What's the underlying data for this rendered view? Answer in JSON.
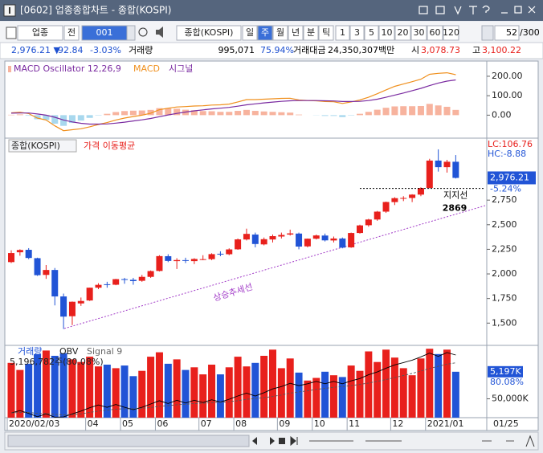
{
  "window": {
    "title": "[0602] 업종종합차트 - 종합(KOSPI)"
  },
  "toolbar": {
    "market": "업종",
    "prefix": "전",
    "code": "001",
    "name": "종합(KOSPI)",
    "periods": [
      "일",
      "주",
      "월",
      "년",
      "분",
      "틱"
    ],
    "intervals": [
      "1",
      "3",
      "5",
      "10",
      "20",
      "30",
      "60",
      "120"
    ],
    "count": "52",
    "total": "/300"
  },
  "quote": {
    "price": "2,976.21 ▼",
    "change": "92.84",
    "rate": "-3.03%",
    "volume_label": "거래량",
    "volume": "995,071",
    "volume_rate": "75.94%",
    "amount_label": "거래대금",
    "amount": "24,350,307백만",
    "open_label": "시",
    "open": "3,078.73",
    "high_label": "고",
    "high": "3,100.22"
  },
  "chart_data": [
    {
      "type": "macd",
      "oscillator": {
        "name": "MACD Oscillator 12,26,9",
        "pos_color": "#f7b39e",
        "neg_color": "#a8d8ee",
        "values": [
          2,
          4,
          -3,
          -21,
          -25,
          -44,
          -55,
          -40,
          -28,
          -14,
          -2,
          7,
          16,
          21,
          23,
          24,
          27,
          36,
          35,
          33,
          28,
          25,
          21,
          20,
          17,
          17,
          22,
          27,
          22,
          19,
          17,
          15,
          13,
          3,
          0,
          -1,
          -4,
          -4,
          -10,
          -2,
          7,
          17,
          28,
          38,
          45,
          46,
          46,
          47,
          58,
          50,
          43,
          27
        ]
      },
      "series": [
        {
          "name": "MACD",
          "color": "#f0901e",
          "values": [
            12,
            15,
            8,
            -15,
            -25,
            -55,
            -80,
            -75,
            -70,
            -60,
            -48,
            -38,
            -25,
            -15,
            -7,
            0,
            10,
            28,
            36,
            42,
            44,
            47,
            48,
            52,
            53,
            57,
            68,
            80,
            80,
            82,
            84,
            86,
            87,
            78,
            75,
            74,
            70,
            69,
            60,
            68,
            78,
            92,
            110,
            130,
            148,
            160,
            172,
            185,
            210,
            215,
            218,
            208
          ]
        },
        {
          "name": "시그널",
          "color": "#7a2aa0",
          "values": [
            10,
            11,
            11,
            6,
            0,
            -11,
            -25,
            -35,
            -42,
            -46,
            -46,
            -45,
            -41,
            -36,
            -30,
            -24,
            -17,
            -8,
            1,
            9,
            16,
            22,
            27,
            32,
            36,
            40,
            46,
            53,
            58,
            63,
            67,
            71,
            74,
            75,
            75,
            75,
            74,
            73,
            70,
            70,
            71,
            75,
            82,
            92,
            103,
            114,
            126,
            138,
            152,
            165,
            175,
            181
          ]
        }
      ],
      "ylim": [
        -110,
        270
      ],
      "yticks": [
        {
          "value": 200,
          "label": "200.00"
        },
        {
          "value": 100,
          "label": "100.00"
        },
        {
          "value": 0,
          "label": "0.00"
        }
      ]
    },
    {
      "type": "candlestick",
      "name": "종합(KOSPI)",
      "ma_label": "가격 이동평균",
      "up_color": "#e8201c",
      "down_color": "#2154d6",
      "ohlc": [
        [
          2120,
          2240,
          2110,
          2212
        ],
        [
          2220,
          2250,
          2185,
          2243
        ],
        [
          2245,
          2262,
          2150,
          2162
        ],
        [
          2160,
          2165,
          1980,
          1987
        ],
        [
          1990,
          2090,
          1950,
          2040
        ],
        [
          2040,
          2060,
          1680,
          1771
        ],
        [
          1771,
          1800,
          1440,
          1566
        ],
        [
          1570,
          1720,
          1480,
          1717
        ],
        [
          1700,
          1760,
          1675,
          1725
        ],
        [
          1730,
          1860,
          1725,
          1860
        ],
        [
          1860,
          1905,
          1845,
          1889
        ],
        [
          1895,
          1920,
          1860,
          1889
        ],
        [
          1890,
          1950,
          1885,
          1947
        ],
        [
          1947,
          1960,
          1900,
          1945
        ],
        [
          1940,
          1960,
          1890,
          1927
        ],
        [
          1930,
          1990,
          1920,
          1970
        ],
        [
          1970,
          2035,
          1960,
          2029
        ],
        [
          2030,
          2190,
          2025,
          2181
        ],
        [
          2180,
          2200,
          2120,
          2132
        ],
        [
          2130,
          2160,
          2050,
          2141
        ],
        [
          2140,
          2165,
          2110,
          2134
        ],
        [
          2130,
          2160,
          2100,
          2152
        ],
        [
          2150,
          2190,
          2140,
          2150
        ],
        [
          2150,
          2210,
          2140,
          2201
        ],
        [
          2205,
          2230,
          2180,
          2200
        ],
        [
          2200,
          2260,
          2190,
          2249
        ],
        [
          2250,
          2360,
          2245,
          2351
        ],
        [
          2350,
          2460,
          2340,
          2407
        ],
        [
          2400,
          2420,
          2270,
          2304
        ],
        [
          2300,
          2370,
          2290,
          2353
        ],
        [
          2350,
          2400,
          2320,
          2384
        ],
        [
          2380,
          2420,
          2360,
          2396
        ],
        [
          2400,
          2450,
          2390,
          2412
        ],
        [
          2410,
          2420,
          2250,
          2278
        ],
        [
          2280,
          2360,
          2270,
          2358
        ],
        [
          2358,
          2400,
          2350,
          2391
        ],
        [
          2390,
          2410,
          2330,
          2341
        ],
        [
          2340,
          2380,
          2320,
          2360
        ],
        [
          2360,
          2370,
          2260,
          2267
        ],
        [
          2270,
          2420,
          2265,
          2416
        ],
        [
          2416,
          2500,
          2410,
          2493
        ],
        [
          2495,
          2560,
          2480,
          2553
        ],
        [
          2553,
          2640,
          2540,
          2633
        ],
        [
          2633,
          2735,
          2620,
          2731
        ],
        [
          2730,
          2780,
          2700,
          2770
        ],
        [
          2770,
          2790,
          2740,
          2772
        ],
        [
          2772,
          2810,
          2730,
          2806
        ],
        [
          2806,
          2880,
          2790,
          2873
        ],
        [
          2874,
          3170,
          2870,
          3152
        ],
        [
          3152,
          3266,
          3040,
          3085
        ],
        [
          3085,
          3160,
          3030,
          3140
        ],
        [
          3140,
          3208,
          2970,
          2976
        ]
      ],
      "ylim": [
        1290,
        3380
      ],
      "yticks": [
        {
          "value": 2750,
          "label": "2,750"
        },
        {
          "value": 2500,
          "label": "2,500"
        },
        {
          "value": 2250,
          "label": "2,250"
        },
        {
          "value": 2000,
          "label": "2,000"
        },
        {
          "value": 1750,
          "label": "1,750"
        },
        {
          "value": 1500,
          "label": "1,500"
        }
      ],
      "last": {
        "value": 2976.21,
        "label": "2,976.21"
      },
      "last_rate": "-5.24%",
      "lc": "LC:106.76",
      "hc": "HC:-8.88",
      "support": {
        "value": 2869,
        "label": "지지선"
      },
      "trend_label": "상승추세선"
    },
    {
      "type": "volume",
      "series": [
        {
          "name": "거래량",
          "values": [
            6200000,
            5400000,
            6100000,
            7200000,
            7600000,
            7000000,
            7300000,
            6600000,
            6300000,
            6900000,
            5800000,
            6000000,
            5600000,
            5900000,
            4700000,
            5300000,
            6900000,
            7400000,
            6100000,
            6600000,
            5400000,
            5700000,
            4900000,
            6000000,
            4900000,
            5700000,
            6900000,
            5800000,
            6200000,
            7000000,
            7700000,
            5600000,
            6700000,
            5100000,
            4200000,
            4500000,
            5200000,
            4800000,
            4600000,
            5900000,
            5300000,
            7500000,
            6300000,
            7700000,
            6800000,
            5600000,
            4800000,
            6700000,
            7800000,
            7200000,
            7700000,
            5196782
          ]
        }
      ],
      "lines": [
        {
          "name": "OBV",
          "color": "#000000",
          "axis": "y2",
          "values": [
            20000,
            25000,
            19000,
            12000,
            18000,
            11000,
            11500,
            18000,
            24000,
            31000,
            37000,
            32000,
            38000,
            32000,
            27000,
            32000,
            39000,
            46000,
            40000,
            47000,
            41000,
            47000,
            42000,
            48000,
            43000,
            49000,
            56000,
            62000,
            56000,
            63000,
            71000,
            76000,
            83000,
            78000,
            82000,
            87000,
            82000,
            87000,
            82000,
            88000,
            93000,
            101000,
            107000,
            115000,
            122000,
            127000,
            132000,
            139000,
            147000,
            140000,
            148000,
            143000
          ]
        },
        {
          "name": "Signal 9",
          "color": "#555555",
          "dashed": true,
          "axis": "y2",
          "values": [
            20000,
            21000,
            21000,
            19000,
            19000,
            17000,
            16000,
            16500,
            18000,
            21000,
            24000,
            26000,
            28000,
            29000,
            29000,
            30000,
            31500,
            34000,
            35500,
            37500,
            38500,
            40000,
            40500,
            42000,
            42500,
            44000,
            46000,
            49000,
            50500,
            52500,
            55000,
            58000,
            62000,
            64500,
            67000,
            70000,
            72000,
            74500,
            76000,
            78000,
            80500,
            83500,
            87000,
            91000,
            95000,
            99500,
            104000,
            109000,
            114500,
            119000,
            123500,
            126500
          ]
        }
      ],
      "summary": "5,196,782주(80.08%)",
      "ylim": [
        0,
        8000000
      ],
      "y2lim": [
        10000,
        160000
      ],
      "y2ticks": [
        {
          "value": 50000,
          "label": "50,000K"
        }
      ],
      "last": {
        "value": 5196782,
        "label": "5,197K"
      },
      "last_rate": "80.08%",
      "xticks": [
        {
          "value": 0,
          "label": "2020/02/03"
        },
        {
          "value": 9,
          "label": "04"
        },
        {
          "value": 13,
          "label": "05"
        },
        {
          "value": 17,
          "label": "06"
        },
        {
          "value": 22,
          "label": "07"
        },
        {
          "value": 26,
          "label": "08"
        },
        {
          "value": 31,
          "label": "09"
        },
        {
          "value": 35,
          "label": "10"
        },
        {
          "value": 39,
          "label": "11"
        },
        {
          "value": 44,
          "label": "12"
        },
        {
          "value": 48,
          "label": "2021/01"
        }
      ],
      "end_label": "01/25"
    }
  ]
}
